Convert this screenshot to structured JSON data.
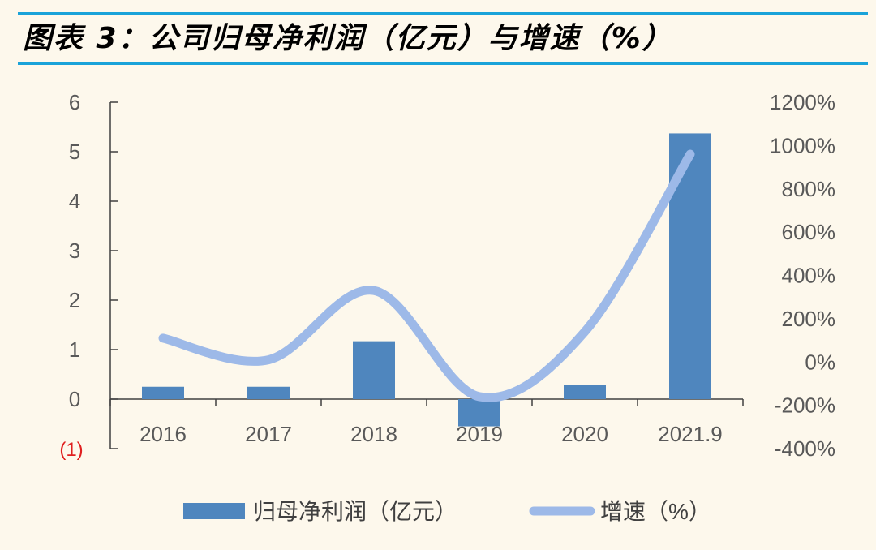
{
  "title": "图表 3：公司归母净利润（亿元）与增速（%）",
  "colors": {
    "bar": "#4f86be",
    "line": "#9db9e8",
    "accent_rule": "#1aa3d9",
    "negative_label": "#e02020"
  },
  "chart_data": {
    "type": "bar+line",
    "categories": [
      "2016",
      "2017",
      "2018",
      "2019",
      "2020",
      "2021.9"
    ],
    "series": [
      {
        "name": "归母净利润（亿元）",
        "type": "bar",
        "axis": "left",
        "values": [
          0.25,
          0.25,
          1.17,
          -0.55,
          0.28,
          5.37
        ]
      },
      {
        "name": "增速（%）",
        "type": "line",
        "axis": "right",
        "smooth": true,
        "values": [
          110,
          10,
          330,
          -160,
          140,
          960
        ]
      }
    ],
    "left_axis": {
      "ylim": [
        -1,
        6
      ],
      "ticks": [
        -1,
        0,
        1,
        2,
        3,
        4,
        5,
        6
      ],
      "tick_labels": [
        "(1)",
        "0",
        "1",
        "2",
        "3",
        "4",
        "5",
        "6"
      ]
    },
    "right_axis": {
      "ylim": [
        -400,
        1200
      ],
      "ticks": [
        -400,
        -200,
        0,
        200,
        400,
        600,
        800,
        1000,
        1200
      ],
      "tick_labels": [
        "-400%",
        "-200%",
        "0%",
        "200%",
        "400%",
        "600%",
        "800%",
        "1000%",
        "1200%"
      ]
    },
    "legend": {
      "position": "bottom",
      "entries": [
        "归母净利润（亿元）",
        "增速（%）"
      ]
    }
  }
}
